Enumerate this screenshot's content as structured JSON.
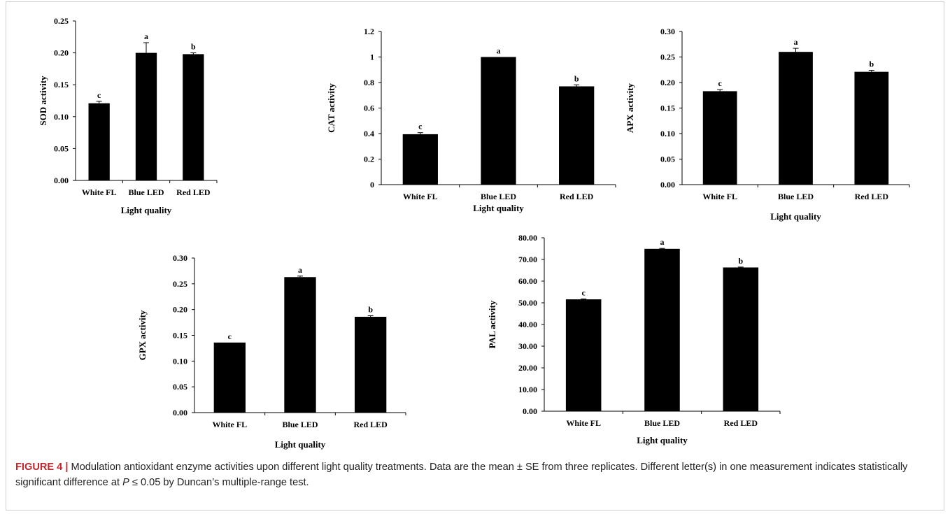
{
  "chart_data": [
    {
      "type": "bar",
      "categories": [
        "White FL",
        "Blue LED",
        "Red LED"
      ],
      "values": [
        0.121,
        0.2,
        0.198
      ],
      "errors": [
        0.003,
        0.016,
        0.002
      ],
      "letters": [
        "c",
        "a",
        "b"
      ],
      "xlabel": "Light quality",
      "ylabel": "SOD activity",
      "ylim": [
        0,
        0.25
      ],
      "yticks": [
        "0.00",
        "0.05",
        "0.10",
        "0.15",
        "0.20",
        "0.25"
      ],
      "bar_color": "#000000"
    },
    {
      "type": "bar",
      "categories": [
        "White FL",
        "Blue LED",
        "Red LED"
      ],
      "values": [
        0.395,
        1.0,
        0.77
      ],
      "errors": [
        0.012,
        0.0,
        0.012
      ],
      "letters": [
        "c",
        "a",
        "b"
      ],
      "xlabel": "Light quality",
      "ylabel": "CAT activity",
      "ylim": [
        0,
        1.2
      ],
      "yticks": [
        "0",
        "0.2",
        "0.4",
        "0.6",
        "0.8",
        "1",
        "1.2"
      ],
      "bar_color": "#000000"
    },
    {
      "type": "bar",
      "categories": [
        "White FL",
        "Blue LED",
        "Red LED"
      ],
      "values": [
        0.183,
        0.26,
        0.221
      ],
      "errors": [
        0.003,
        0.007,
        0.003
      ],
      "letters": [
        "c",
        "a",
        "b"
      ],
      "xlabel": "Light quality",
      "ylabel": "APX activity",
      "ylim": [
        0,
        0.3
      ],
      "yticks": [
        "0.00",
        "0.05",
        "0.10",
        "0.15",
        "0.20",
        "0.25",
        "0.30"
      ],
      "bar_color": "#000000"
    },
    {
      "type": "bar",
      "categories": [
        "White FL",
        "Blue LED",
        "Red LED"
      ],
      "values": [
        0.136,
        0.263,
        0.186
      ],
      "errors": [
        0.0,
        0.002,
        0.002
      ],
      "letters": [
        "c",
        "a",
        "b"
      ],
      "xlabel": "Light quality",
      "ylabel": "GPX activity",
      "ylim": [
        0,
        0.3
      ],
      "yticks": [
        "0.00",
        "0.05",
        "0.10",
        "0.15",
        "0.20",
        "0.25",
        "0.30"
      ],
      "bar_color": "#000000"
    },
    {
      "type": "bar",
      "categories": [
        "White FL",
        "Blue LED",
        "Red LED"
      ],
      "values": [
        51.6,
        74.9,
        66.3
      ],
      "errors": [
        0.2,
        0.2,
        0.2
      ],
      "letters": [
        "c",
        "a",
        "b"
      ],
      "xlabel": "Light quality",
      "ylabel": "PAL activity",
      "ylim": [
        0,
        80
      ],
      "yticks": [
        "0.00",
        "10.00",
        "20.00",
        "30.00",
        "40.00",
        "50.00",
        "60.00",
        "70.00",
        "80.00"
      ],
      "bar_color": "#000000"
    }
  ],
  "caption": {
    "label": "FIGURE 4",
    "separator": "|",
    "text_1": "Modulation antioxidant enzyme activities upon different light quality treatments. Data are the mean ± SE from three replicates. Different letter(s) in one measurement indicates statistically significant difference at",
    "p_symbol": "P",
    "text_2": "≤ 0.05 by Duncan’s multiple-range test."
  }
}
